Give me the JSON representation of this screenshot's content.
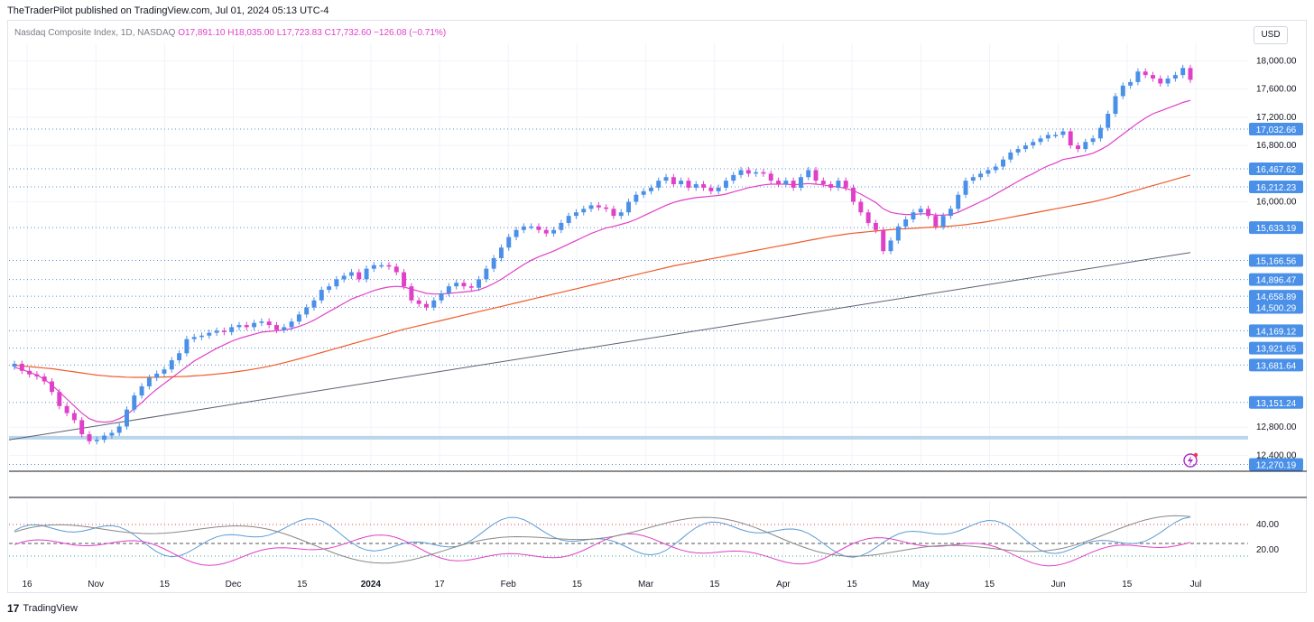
{
  "header": {
    "publisher_line": "TheTraderPilot published on TradingView.com, Jul 01, 2024 05:13 UTC-4"
  },
  "legend": {
    "symbol": "Nasdaq Composite Index, 1D, NASDAQ",
    "open": "O17,891.10",
    "high": "H18,035.00",
    "low": "L17,723.83",
    "close": "C17,732.60",
    "change": "−126.08 (−0.71%)"
  },
  "currency_button": "USD",
  "footer": {
    "logo_glyph": "17",
    "brand": "TradingView"
  },
  "colors": {
    "up_candle": "#4a90e8",
    "down_candle": "#e040c8",
    "ema20": "#e040c8",
    "ema50": "#ef5b2a",
    "sma200": "#5d6070",
    "level_line": "#5b8fd6",
    "label_bg": "#4a90e8",
    "support_band": "#b8d6ec",
    "rsi_blue": "#5b9bd5",
    "rsi_magenta": "#e040c8",
    "rsi_gray": "#888888"
  },
  "chart_data": {
    "type": "candlestick",
    "title": "Nasdaq Composite Index, 1D, NASDAQ",
    "y_axis_ticks": [
      "18,000.00",
      "17,600.00",
      "17,200.00",
      "16,800.00",
      "16,000.00",
      "12,800.00",
      "12,400.00"
    ],
    "y_range": [
      12200,
      18250
    ],
    "x_axis_ticks": [
      "16",
      "Nov",
      "15",
      "Dec",
      "15",
      "2024",
      "17",
      "Feb",
      "15",
      "Mar",
      "15",
      "Apr",
      "15",
      "May",
      "15",
      "Jun",
      "15",
      "Jul"
    ],
    "horizontal_levels": [
      "17,032.66",
      "16,467.62",
      "16,212.23",
      "15,633.19",
      "15,166.56",
      "14,896.47",
      "14,658.89",
      "14,500.29",
      "14,169.12",
      "13,921.65",
      "13,681.64",
      "13,151.24",
      "12,270.19"
    ],
    "support_band_level": 12650,
    "close_series": [
      13700,
      13600,
      13550,
      13520,
      13450,
      13300,
      13100,
      13000,
      12900,
      12700,
      12600,
      12620,
      12680,
      12720,
      12810,
      13050,
      13250,
      13380,
      13500,
      13560,
      13620,
      13750,
      13850,
      14050,
      14080,
      14100,
      14140,
      14170,
      14150,
      14220,
      14250,
      14220,
      14280,
      14300,
      14250,
      14180,
      14220,
      14300,
      14400,
      14500,
      14600,
      14750,
      14800,
      14900,
      14950,
      15000,
      14900,
      15050,
      15100,
      15100,
      15080,
      15000,
      14800,
      14600,
      14550,
      14500,
      14600,
      14700,
      14800,
      14850,
      14800,
      14780,
      14900,
      15050,
      15200,
      15350,
      15500,
      15600,
      15650,
      15650,
      15600,
      15550,
      15600,
      15700,
      15800,
      15850,
      15900,
      15950,
      15920,
      15900,
      15800,
      15850,
      16000,
      16100,
      16150,
      16200,
      16300,
      16350,
      16250,
      16300,
      16200,
      16250,
      16200,
      16150,
      16200,
      16300,
      16380,
      16450,
      16400,
      16420,
      16400,
      16300,
      16250,
      16300,
      16200,
      16350,
      16450,
      16300,
      16250,
      16200,
      16300,
      16200,
      16000,
      15850,
      15700,
      15600,
      15300,
      15450,
      15650,
      15750,
      15850,
      15900,
      15800,
      15650,
      15800,
      15900,
      16100,
      16300,
      16350,
      16400,
      16450,
      16500,
      16600,
      16700,
      16750,
      16800,
      16850,
      16900,
      16950,
      16950,
      17000,
      16800,
      16750,
      16850,
      16900,
      17050,
      17250,
      17500,
      17650,
      17700,
      17850,
      17800,
      17750,
      17680,
      17750,
      17800,
      17900,
      17732
    ],
    "ema20_series": [
      13650,
      13620,
      13580,
      13540,
      13480,
      13400,
      13300,
      13200,
      13100,
      13000,
      12920,
      12880,
      12870,
      12880,
      12920,
      12980,
      13060,
      13150,
      13250,
      13340,
      13420,
      13500,
      13580,
      13660,
      13740,
      13800,
      13860,
      13920,
      13970,
      14020,
      14060,
      14090,
      14120,
      14150,
      14160,
      14170,
      14180,
      14200,
      14230,
      14270,
      14320,
      14380,
      14440,
      14500,
      14560,
      14620,
      14660,
      14700,
      14740,
      14770,
      14790,
      14800,
      14790,
      14760,
      14730,
      14700,
      14690,
      14690,
      14700,
      14710,
      14720,
      14730,
      14750,
      14790,
      14840,
      14900,
      14970,
      15040,
      15110,
      15170,
      15220,
      15260,
      15300,
      15350,
      15400,
      15450,
      15500,
      15550,
      15590,
      15630,
      15650,
      15680,
      15710,
      15750,
      15800,
      15850,
      15900,
      15950,
      15990,
      16020,
      16040,
      16060,
      16070,
      16080,
      16090,
      16110,
      16140,
      16170,
      16200,
      16220,
      16240,
      16250,
      16250,
      16250,
      16240,
      16250,
      16260,
      16250,
      16240,
      16220,
      16210,
      16190,
      16160,
      16110,
      16050,
      15990,
      15900,
      15850,
      15830,
      15820,
      15820,
      15830,
      15830,
      15810,
      15810,
      15820,
      15850,
      15900,
      15950,
      16000,
      16050,
      16110,
      16170,
      16230,
      16290,
      16350,
      16400,
      16460,
      16510,
      16550,
      16600,
      16620,
      16640,
      16660,
      16690,
      16740,
      16800,
      16880,
      16960,
      17040,
      17120,
      17190,
      17250,
      17290,
      17330,
      17370,
      17410,
      17440
    ],
    "ema50_series": [
      13680,
      13670,
      13660,
      13650,
      13640,
      13630,
      13615,
      13600,
      13585,
      13570,
      13555,
      13540,
      13530,
      13520,
      13515,
      13510,
      13508,
      13507,
      13508,
      13510,
      13512,
      13515,
      13518,
      13522,
      13528,
      13535,
      13545,
      13555,
      13565,
      13578,
      13592,
      13608,
      13625,
      13645,
      13665,
      13690,
      13715,
      13742,
      13770,
      13800,
      13830,
      13860,
      13890,
      13920,
      13950,
      13980,
      14010,
      14040,
      14070,
      14100,
      14130,
      14160,
      14190,
      14215,
      14240,
      14265,
      14290,
      14315,
      14340,
      14365,
      14390,
      14415,
      14440,
      14465,
      14490,
      14515,
      14540,
      14565,
      14590,
      14615,
      14640,
      14665,
      14690,
      14715,
      14740,
      14765,
      14790,
      14815,
      14840,
      14865,
      14890,
      14915,
      14940,
      14965,
      14990,
      15015,
      15040,
      15065,
      15090,
      15110,
      15130,
      15150,
      15170,
      15190,
      15210,
      15230,
      15250,
      15270,
      15290,
      15310,
      15330,
      15350,
      15370,
      15390,
      15410,
      15430,
      15450,
      15470,
      15490,
      15510,
      15525,
      15540,
      15555,
      15565,
      15575,
      15585,
      15595,
      15605,
      15612,
      15618,
      15624,
      15630,
      15636,
      15642,
      15648,
      15655,
      15665,
      15675,
      15690,
      15705,
      15720,
      15740,
      15760,
      15780,
      15800,
      15820,
      15840,
      15860,
      15880,
      15900,
      15920,
      15940,
      15960,
      15980,
      16000,
      16025,
      16050,
      16080,
      16110,
      16140,
      16170,
      16200,
      16230,
      16260,
      16290,
      16320,
      16350,
      16380
    ],
    "sma200_start": 12620,
    "sma200_end": 15280,
    "rsi": {
      "ticks": [
        "40.00",
        "20.00"
      ],
      "range": [
        5,
        55
      ],
      "upper_level": 40,
      "lower_level": 15,
      "mid_level": 25
    }
  }
}
